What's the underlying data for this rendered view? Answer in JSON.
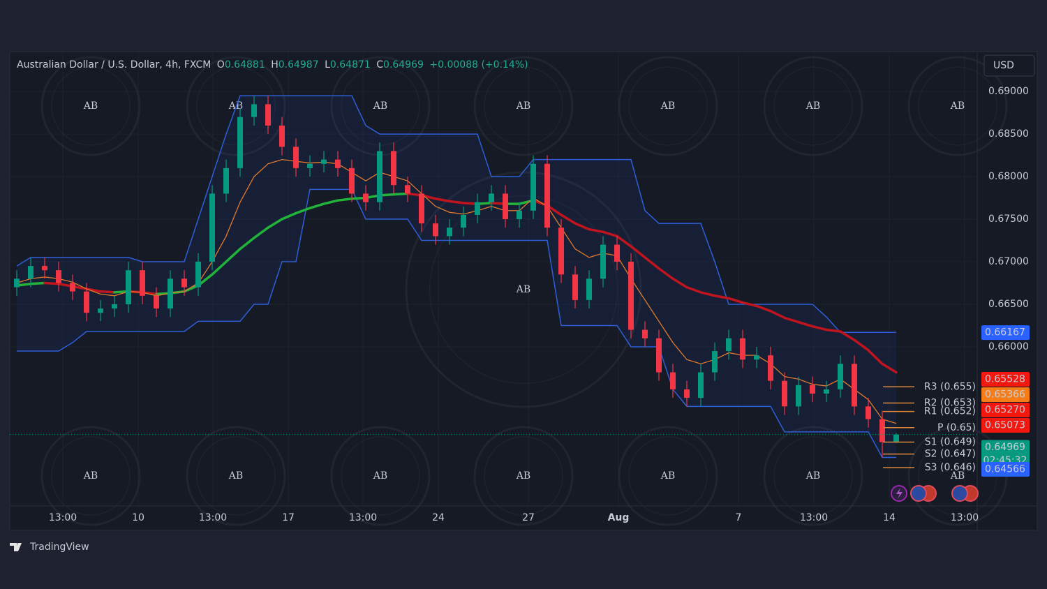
{
  "header": {
    "symbol": "Australian Dollar / U.S. Dollar, 4h, FXCM",
    "o_label": "O",
    "open": "0.64881",
    "h_label": "H",
    "high": "0.64987",
    "l_label": "L",
    "low": "0.64871",
    "c_label": "C",
    "close": "0.64969",
    "change": "+0.00088 (+0.14%)"
  },
  "currency": "USD",
  "brand": "TradingView",
  "watermark": "AB",
  "chart_data": {
    "type": "candlestick",
    "up_color": "#089981",
    "down_color": "#f23645",
    "candles": {
      "open": [
        0.667,
        0.668,
        0.6695,
        0.669,
        0.6675,
        0.6665,
        0.664,
        0.6645,
        0.665,
        0.669,
        0.666,
        0.6645,
        0.668,
        0.667,
        0.67,
        0.678,
        0.681,
        0.687,
        0.6885,
        0.686,
        0.6835,
        0.681,
        0.6815,
        0.682,
        0.681,
        0.678,
        0.677,
        0.683,
        0.679,
        0.678,
        0.6745,
        0.673,
        0.674,
        0.6755,
        0.677,
        0.678,
        0.675,
        0.676,
        0.6815,
        0.674,
        0.6685,
        0.6655,
        0.668,
        0.672,
        0.67,
        0.662,
        0.661,
        0.657,
        0.655,
        0.654,
        0.657,
        0.6595,
        0.661,
        0.6585,
        0.659,
        0.656,
        0.653,
        0.6555,
        0.6545,
        0.655,
        0.658,
        0.653,
        0.6515,
        0.64881
      ],
      "high": [
        0.669,
        0.6705,
        0.6705,
        0.67,
        0.6685,
        0.6675,
        0.6655,
        0.666,
        0.67,
        0.67,
        0.667,
        0.669,
        0.669,
        0.671,
        0.679,
        0.682,
        0.688,
        0.6895,
        0.6895,
        0.687,
        0.6845,
        0.6825,
        0.683,
        0.683,
        0.682,
        0.679,
        0.684,
        0.684,
        0.68,
        0.679,
        0.6755,
        0.675,
        0.6765,
        0.678,
        0.679,
        0.679,
        0.677,
        0.6825,
        0.6825,
        0.675,
        0.6695,
        0.669,
        0.673,
        0.673,
        0.671,
        0.663,
        0.662,
        0.658,
        0.656,
        0.658,
        0.6605,
        0.662,
        0.662,
        0.66,
        0.66,
        0.657,
        0.6565,
        0.6565,
        0.656,
        0.659,
        0.659,
        0.654,
        0.6525,
        0.64987
      ],
      "low": [
        0.666,
        0.667,
        0.668,
        0.6665,
        0.6655,
        0.663,
        0.663,
        0.6635,
        0.664,
        0.665,
        0.6635,
        0.6635,
        0.666,
        0.666,
        0.669,
        0.677,
        0.68,
        0.686,
        0.685,
        0.6825,
        0.68,
        0.68,
        0.6805,
        0.68,
        0.677,
        0.676,
        0.676,
        0.678,
        0.677,
        0.6735,
        0.672,
        0.672,
        0.673,
        0.6745,
        0.676,
        0.674,
        0.674,
        0.675,
        0.673,
        0.6675,
        0.6645,
        0.6645,
        0.667,
        0.669,
        0.661,
        0.66,
        0.656,
        0.654,
        0.653,
        0.653,
        0.656,
        0.6585,
        0.6575,
        0.6575,
        0.655,
        0.652,
        0.652,
        0.6535,
        0.6535,
        0.654,
        0.652,
        0.6505,
        0.647,
        0.64871
      ],
      "close": [
        0.668,
        0.6695,
        0.669,
        0.6675,
        0.6665,
        0.664,
        0.6645,
        0.665,
        0.669,
        0.666,
        0.6645,
        0.668,
        0.667,
        0.67,
        0.678,
        0.681,
        0.687,
        0.6885,
        0.686,
        0.6835,
        0.681,
        0.6815,
        0.682,
        0.681,
        0.678,
        0.677,
        0.683,
        0.679,
        0.678,
        0.6745,
        0.673,
        0.674,
        0.6755,
        0.677,
        0.678,
        0.675,
        0.676,
        0.6815,
        0.674,
        0.6685,
        0.6655,
        0.668,
        0.672,
        0.67,
        0.662,
        0.661,
        0.657,
        0.655,
        0.654,
        0.657,
        0.6595,
        0.661,
        0.6585,
        0.659,
        0.656,
        0.653,
        0.6555,
        0.6545,
        0.655,
        0.658,
        0.653,
        0.6515,
        0.64881,
        0.64969
      ]
    },
    "ma_slow": {
      "up_color": "#22b33a",
      "down_color": "#c0141f",
      "values": [
        0.6672,
        0.6674,
        0.6675,
        0.6674,
        0.6671,
        0.6668,
        0.6665,
        0.6664,
        0.6665,
        0.6664,
        0.6662,
        0.6663,
        0.6665,
        0.6672,
        0.6685,
        0.67,
        0.6715,
        0.6728,
        0.674,
        0.675,
        0.6757,
        0.6763,
        0.6768,
        0.6772,
        0.6774,
        0.6775,
        0.6778,
        0.6779,
        0.678,
        0.6778,
        0.6774,
        0.6771,
        0.6769,
        0.6768,
        0.6769,
        0.6768,
        0.6768,
        0.6772,
        0.6766,
        0.6755,
        0.6745,
        0.6738,
        0.6735,
        0.673,
        0.6718,
        0.6705,
        0.6692,
        0.668,
        0.667,
        0.6664,
        0.666,
        0.6657,
        0.6652,
        0.6648,
        0.6642,
        0.6634,
        0.6629,
        0.6624,
        0.662,
        0.6618,
        0.6608,
        0.6596,
        0.658,
        0.657
      ]
    },
    "ma_fast": {
      "color": "#e07a2c",
      "values": [
        0.6675,
        0.668,
        0.6682,
        0.668,
        0.6676,
        0.6668,
        0.6662,
        0.666,
        0.6665,
        0.6664,
        0.666,
        0.6663,
        0.6665,
        0.6675,
        0.67,
        0.673,
        0.677,
        0.68,
        0.6815,
        0.682,
        0.6818,
        0.6816,
        0.6817,
        0.6815,
        0.6805,
        0.6795,
        0.6805,
        0.68,
        0.6795,
        0.678,
        0.6765,
        0.6758,
        0.6756,
        0.676,
        0.6765,
        0.676,
        0.676,
        0.6775,
        0.6765,
        0.674,
        0.6715,
        0.6705,
        0.671,
        0.6707,
        0.668,
        0.6655,
        0.663,
        0.6605,
        0.6585,
        0.658,
        0.6585,
        0.6593,
        0.659,
        0.659,
        0.658,
        0.6565,
        0.6562,
        0.6556,
        0.6554,
        0.6562,
        0.655,
        0.6538,
        0.6515,
        0.651
      ]
    },
    "channel": {
      "color": "#2f5fd6",
      "fill": "rgba(41,98,255,0.08)",
      "upper": [
        0.6695,
        0.6705,
        0.6705,
        0.6705,
        0.6705,
        0.6705,
        0.6705,
        0.6705,
        0.6705,
        0.67,
        0.67,
        0.67,
        0.67,
        0.675,
        0.68,
        0.685,
        0.6895,
        0.6895,
        0.6895,
        0.6895,
        0.6895,
        0.6895,
        0.6895,
        0.6895,
        0.6895,
        0.686,
        0.685,
        0.685,
        0.685,
        0.685,
        0.685,
        0.685,
        0.685,
        0.685,
        0.68,
        0.68,
        0.68,
        0.682,
        0.682,
        0.682,
        0.682,
        0.682,
        0.682,
        0.682,
        0.682,
        0.676,
        0.6745,
        0.6745,
        0.6745,
        0.6745,
        0.67,
        0.665,
        0.665,
        0.665,
        0.665,
        0.665,
        0.665,
        0.665,
        0.6635,
        0.6617,
        0.6617,
        0.6617,
        0.6617,
        0.6617
      ],
      "lower": [
        0.6595,
        0.6595,
        0.6595,
        0.6595,
        0.6605,
        0.6618,
        0.6618,
        0.6618,
        0.6618,
        0.6618,
        0.6618,
        0.6618,
        0.6618,
        0.663,
        0.663,
        0.663,
        0.663,
        0.665,
        0.665,
        0.67,
        0.67,
        0.6785,
        0.6785,
        0.6785,
        0.6785,
        0.675,
        0.675,
        0.675,
        0.675,
        0.6725,
        0.6725,
        0.6725,
        0.6725,
        0.6725,
        0.6725,
        0.6725,
        0.6725,
        0.6725,
        0.6725,
        0.6625,
        0.6625,
        0.6625,
        0.6625,
        0.6625,
        0.66,
        0.66,
        0.66,
        0.655,
        0.653,
        0.653,
        0.653,
        0.653,
        0.653,
        0.653,
        0.653,
        0.65,
        0.65,
        0.65,
        0.65,
        0.65,
        0.65,
        0.65,
        0.647,
        0.647
      ]
    },
    "pivot_color": "#e0883a",
    "pivots": [
      {
        "label": "R3 (0.655)",
        "value": 0.6553
      },
      {
        "label": "R2 (0.653)",
        "value": 0.6534
      },
      {
        "label": "R1 (0.652)",
        "value": 0.6524
      },
      {
        "label": "P (0.65)",
        "value": 0.6505
      },
      {
        "label": "S1 (0.649)",
        "value": 0.6488
      },
      {
        "label": "S2 (0.647)",
        "value": 0.6474
      },
      {
        "label": "S3 (0.646)",
        "value": 0.6458
      }
    ],
    "price_labels": [
      {
        "value": 0.66167,
        "color": "#2962ff"
      },
      {
        "value": 0.65528,
        "color": "#f2180f"
      },
      {
        "value": 0.65366,
        "color": "#f57c17"
      },
      {
        "value": 0.6527,
        "label": "0.65270",
        "color": "#f2180f"
      },
      {
        "value": 0.65073,
        "color": "#f2180f"
      },
      {
        "value": 0.64969,
        "color": "#089981",
        "timer": "02:45:32"
      },
      {
        "value": 0.64566,
        "color": "#2962ff"
      }
    ],
    "ylim": [
      0.6413,
      0.6946
    ],
    "yticks": [
      {
        "value": 0.69,
        "label": "0.69000"
      },
      {
        "value": 0.685,
        "label": "0.68500"
      },
      {
        "value": 0.68,
        "label": "0.68000"
      },
      {
        "value": 0.675,
        "label": "0.67500"
      },
      {
        "value": 0.67,
        "label": "0.67000"
      },
      {
        "value": 0.665,
        "label": "0.66500"
      },
      {
        "value": 0.66,
        "label": "0.66000"
      }
    ],
    "xlim": [
      0,
      69.3
    ],
    "xticks": [
      {
        "value": 3.8,
        "label": "13:00"
      },
      {
        "value": 9.2,
        "label": "10"
      },
      {
        "value": 14.55,
        "label": "13:00"
      },
      {
        "value": 19.95,
        "label": "17"
      },
      {
        "value": 25.3,
        "label": "13:00"
      },
      {
        "value": 30.7,
        "label": "24"
      },
      {
        "value": 37.15,
        "label": "27"
      },
      {
        "value": 43.6,
        "label": "Aug"
      },
      {
        "value": 52.2,
        "label": "7"
      },
      {
        "value": 57.6,
        "label": "13:00"
      },
      {
        "value": 63,
        "label": "14"
      },
      {
        "value": 68.4,
        "label": "13:00"
      }
    ]
  }
}
